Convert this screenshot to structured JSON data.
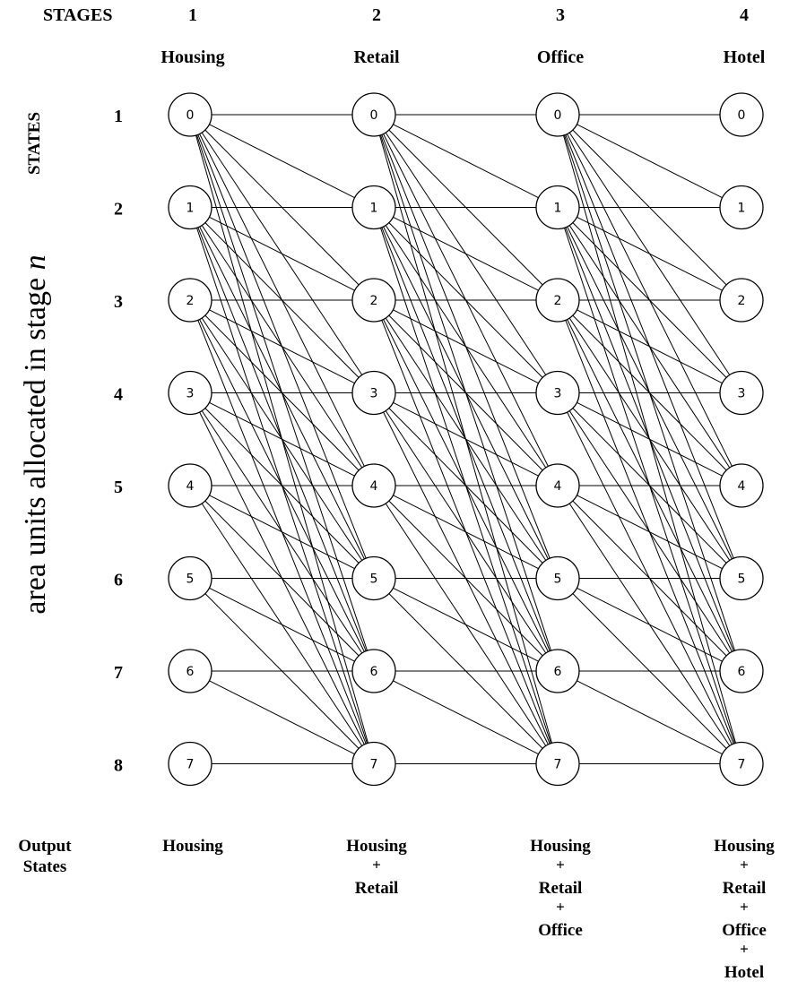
{
  "header": {
    "stages_label": "STAGES",
    "states_label": "STATES",
    "output_label_line1": "Output",
    "output_label_line2": "States"
  },
  "axis_label_text": "area units allocated in stage ",
  "axis_label_var": "n",
  "stages": [
    {
      "number": "1",
      "name": "Housing",
      "output_lines": [
        "Housing"
      ]
    },
    {
      "number": "2",
      "name": "Retail",
      "output_lines": [
        "Housing",
        "+",
        "Retail"
      ]
    },
    {
      "number": "3",
      "name": "Office",
      "output_lines": [
        "Housing",
        "+",
        "Retail",
        "+",
        "Office"
      ]
    },
    {
      "number": "4",
      "name": "Hotel",
      "output_lines": [
        "Housing",
        "+",
        "Retail",
        "+",
        "Office",
        "+",
        "Hotel"
      ]
    }
  ],
  "states": [
    "1",
    "2",
    "3",
    "4",
    "5",
    "6",
    "7",
    "8"
  ],
  "node_values": [
    "0",
    "1",
    "2",
    "3",
    "4",
    "5",
    "6",
    "7"
  ],
  "edge_rule": "each node i connects to every node j >= i in the next stage"
}
